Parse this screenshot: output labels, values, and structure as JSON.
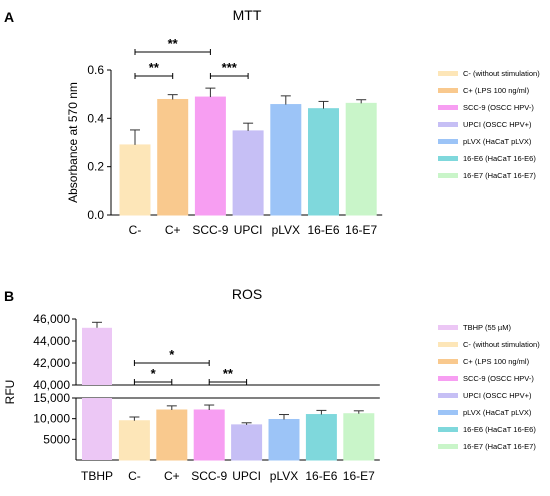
{
  "chart_data": [
    {
      "panel": "A",
      "type": "bar",
      "title": "MTT",
      "ylabel": "Absorbance at 570 nm",
      "ylim": [
        0,
        0.6
      ],
      "yticks": [
        "0.0",
        "0.2",
        "0.4",
        "0.6"
      ],
      "categories": [
        "C-",
        "C+",
        "SCC-9",
        "UPCI",
        "pLVX",
        "16-E6",
        "16-E7"
      ],
      "values": [
        0.29,
        0.478,
        0.488,
        0.348,
        0.457,
        0.44,
        0.462
      ],
      "errors": [
        0.062,
        0.02,
        0.037,
        0.032,
        0.036,
        0.03,
        0.015
      ],
      "colors": [
        "#fde6b8",
        "#f9c98e",
        "#f79ef2",
        "#c6bff5",
        "#9cc4f7",
        "#7fd8dc",
        "#c9f5c9"
      ],
      "legend": [
        "C- (without stimulation)",
        "C+ (LPS 100 ng/ml)",
        "SCC-9 (OSCC HPV-)",
        "UPCI (OSCC HPV+)",
        "pLVX (HaCaT pLVX)",
        "16-E6 (HaCaT 16-E6)",
        "16-E7 (HaCaT 16-E7)"
      ],
      "significance": [
        {
          "from": "C-",
          "to": "SCC-9",
          "label": "**"
        },
        {
          "from": "C-",
          "to": "C+",
          "label": "**"
        },
        {
          "from": "SCC-9",
          "to": "UPCI",
          "label": "***"
        }
      ]
    },
    {
      "panel": "B",
      "type": "bar",
      "title": "ROS",
      "ylabel": "RFU",
      "axis_break": true,
      "lower_ylim": [
        0,
        15000
      ],
      "upper_ylim": [
        40000,
        46000
      ],
      "yticks_lower": [
        "5000",
        "10,000",
        "15,000"
      ],
      "yticks_upper": [
        "40,000",
        "42,000",
        "44,000",
        "46,000"
      ],
      "categories": [
        "TBHP",
        "C-",
        "C+",
        "SCC-9",
        "UPCI",
        "pLVX",
        "16-E6",
        "16-E7"
      ],
      "values": [
        45200,
        9500,
        12100,
        12100,
        8500,
        9800,
        11000,
        11200
      ],
      "errors": [
        500,
        900,
        1000,
        1200,
        500,
        1200,
        1000,
        700
      ],
      "colors": [
        "#ecc7f5",
        "#fde6b8",
        "#f9c98e",
        "#f79ef2",
        "#c6bff5",
        "#9cc4f7",
        "#7fd8dc",
        "#c9f5c9"
      ],
      "legend": [
        "TBHP (55 µM)",
        "C- (without stimulation)",
        "C+ (LPS 100 ng/ml)",
        "SCC-9 (OSCC HPV-)",
        "UPCI (OSCC HPV+)",
        "pLVX (HaCaT pLVX)",
        "16-E6 (HaCaT 16-E6)",
        "16-E7 (HaCaT 16-E7)"
      ],
      "significance": [
        {
          "from": "C-",
          "to": "SCC-9",
          "label": "*"
        },
        {
          "from": "C-",
          "to": "C+",
          "label": "*"
        },
        {
          "from": "SCC-9",
          "to": "UPCI",
          "label": "**"
        }
      ]
    }
  ]
}
